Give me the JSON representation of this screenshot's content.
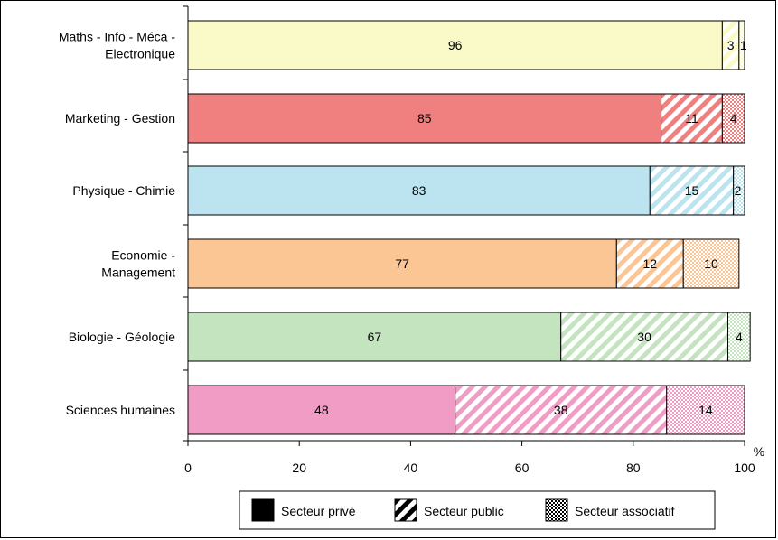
{
  "chart_data": {
    "type": "bar",
    "orientation": "horizontal",
    "stacked": true,
    "unit": "%",
    "xlim": [
      0,
      100
    ],
    "xticks": [
      0,
      20,
      40,
      60,
      80,
      100
    ],
    "legend_position": "bottom",
    "categories": [
      [
        "Maths - Info - Méca -",
        "Electronique"
      ],
      [
        "Marketing - Gestion"
      ],
      [
        "Physique - Chimie"
      ],
      [
        "Economie -",
        "Management"
      ],
      [
        "Biologie - Géologie"
      ],
      [
        "Sciences humaines"
      ]
    ],
    "colors": [
      "#fafac8",
      "#f08080",
      "#bce4f0",
      "#fcc594",
      "#c4e4c0",
      "#f09cc4"
    ],
    "series": [
      {
        "name": "Secteur privé",
        "pattern": "solid",
        "values": [
          96,
          85,
          83,
          77,
          67,
          48
        ]
      },
      {
        "name": "Secteur public",
        "pattern": "diagonal-stripes",
        "values": [
          3,
          11,
          15,
          12,
          30,
          38
        ]
      },
      {
        "name": "Secteur associatif",
        "pattern": "checker",
        "values": [
          1,
          4,
          2,
          10,
          4,
          14
        ]
      }
    ]
  }
}
